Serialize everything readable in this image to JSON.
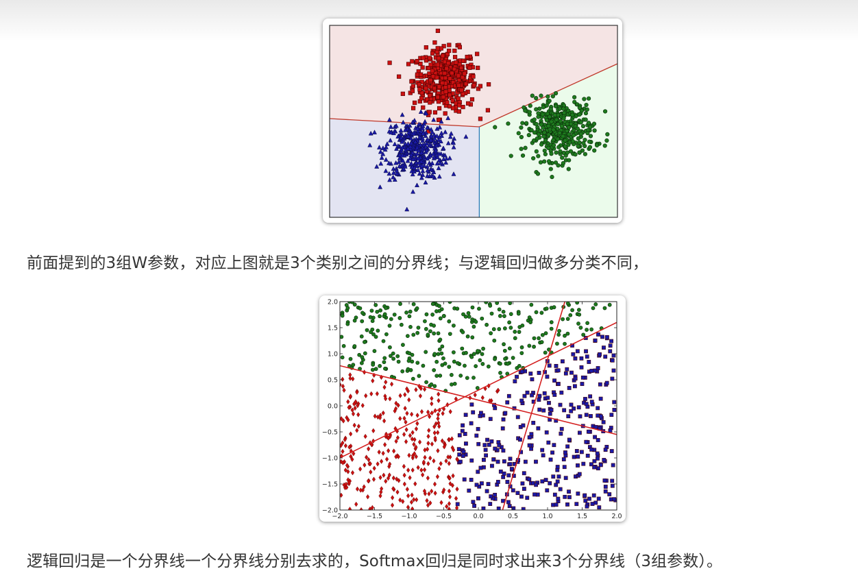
{
  "paragraphs": {
    "p1": "前面提到的3组W参数，对应上图就是3个类别之间的分界线；与逻辑回归做多分类不同，",
    "p2": "逻辑回归是一个分界线一个分界线分别去求的，Softmax回归是同时求出来3个分界线（3组参数）。"
  },
  "colors": {
    "red": "#cc1111",
    "blue": "#1a1aa6",
    "green": "#1e7a1e",
    "region_red": "#f5e4e4",
    "region_blue": "#e3e4f2",
    "region_green": "#ebfbeb",
    "line_red": "#d42020"
  },
  "chart_data": [
    {
      "type": "scatter",
      "title": "",
      "description_of_marks": "three gaussian clusters with linear decision regions",
      "xlim": [
        0,
        10
      ],
      "ylim": [
        0,
        7
      ],
      "axes_ticks_visible": false,
      "series": [
        {
          "name": "",
          "marker": "square",
          "color": "#cc1111",
          "center": [
            4.0,
            5.0
          ],
          "spread": [
            0.55,
            0.55
          ],
          "count": 420
        },
        {
          "name": "",
          "marker": "triangle",
          "color": "#1a1aa6",
          "center": [
            3.0,
            2.5
          ],
          "spread": [
            0.55,
            0.55
          ],
          "count": 400
        },
        {
          "name": "",
          "marker": "circle",
          "color": "#1e7a1e",
          "center": [
            8.0,
            3.2
          ],
          "spread": [
            0.6,
            0.55
          ],
          "count": 400
        }
      ],
      "boundaries": [
        {
          "from": [
            0,
            3.6
          ],
          "to": [
            5.2,
            3.3
          ]
        },
        {
          "from": [
            5.2,
            3.3
          ],
          "to": [
            10,
            5.6
          ]
        },
        {
          "from": [
            5.2,
            3.3
          ],
          "to": [
            5.2,
            0
          ]
        }
      ],
      "regions": [
        {
          "class": "red",
          "color": "#f5e4e4"
        },
        {
          "class": "blue",
          "color": "#e3e4f2"
        },
        {
          "class": "green",
          "color": "#ebfbeb"
        }
      ]
    },
    {
      "type": "scatter",
      "title": "",
      "xlim": [
        -2.0,
        2.0
      ],
      "ylim": [
        -2.0,
        2.0
      ],
      "xticks": [
        "−2.0",
        "−1.5",
        "−1.0",
        "−0.5",
        "0.0",
        "0.5",
        "1.0",
        "1.5",
        "2.0"
      ],
      "yticks": [
        "−2.0",
        "−1.5",
        "−1.0",
        "−0.5",
        "0.0",
        "0.5",
        "1.0",
        "1.5",
        "2.0"
      ],
      "xtick_values": [
        -2.0,
        -1.5,
        -1.0,
        -0.5,
        0.0,
        0.5,
        1.0,
        1.5,
        2.0
      ],
      "ytick_values": [
        -2.0,
        -1.5,
        -1.0,
        -0.5,
        0.0,
        0.5,
        1.0,
        1.5,
        2.0
      ],
      "grid": false,
      "series": [
        {
          "name": "",
          "marker": "diamond",
          "color": "#cc1111",
          "count": 300,
          "region": "left"
        },
        {
          "name": "",
          "marker": "circle",
          "color": "#1e7a1e",
          "count": 300,
          "region": "top"
        },
        {
          "name": "",
          "marker": "square",
          "color": "#1a1aa6",
          "count": 350,
          "region": "bottom-right"
        }
      ],
      "lines": [
        {
          "from": [
            -2.0,
            0.77
          ],
          "to": [
            2.0,
            -0.55
          ]
        },
        {
          "from": [
            -2.0,
            -1.0
          ],
          "to": [
            2.0,
            1.6
          ]
        },
        {
          "from": [
            0.35,
            -2.0
          ],
          "to": [
            1.25,
            2.0
          ]
        }
      ]
    }
  ]
}
